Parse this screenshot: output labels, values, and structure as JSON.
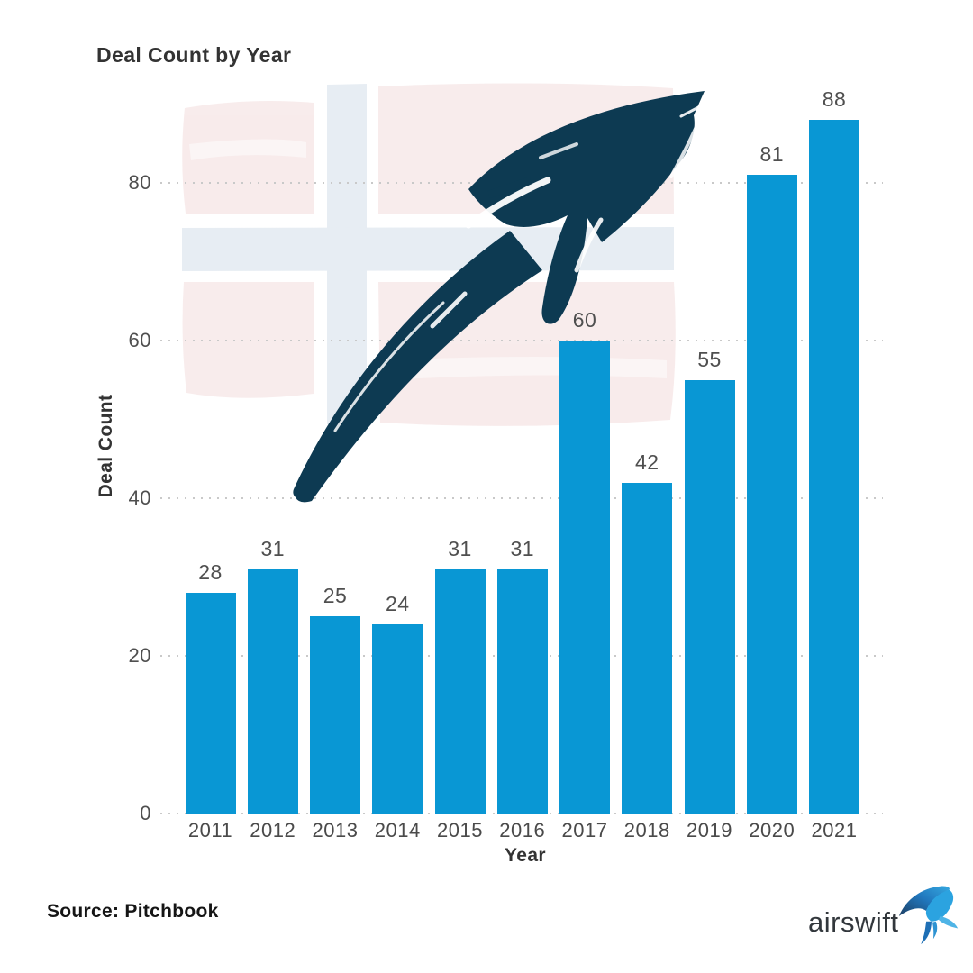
{
  "chart_data": {
    "type": "bar",
    "title": "Deal Count by Year",
    "categories": [
      "2011",
      "2012",
      "2013",
      "2014",
      "2015",
      "2016",
      "2017",
      "2018",
      "2019",
      "2020",
      "2021"
    ],
    "values": [
      28,
      31,
      25,
      24,
      31,
      31,
      60,
      42,
      55,
      81,
      88
    ],
    "xlabel": "Year",
    "ylabel": "Deal Count",
    "ylim": [
      0,
      92
    ],
    "yticks": [
      0,
      20,
      40,
      60,
      80
    ],
    "grid": "horizontal-dotted",
    "legend": "none",
    "bar_color": "#0997d4"
  },
  "graphics": {
    "arrow_icon": "brush-growth-arrow",
    "watermark_icon": "norway-flag",
    "logo_icon": "swallow-bird"
  },
  "colors": {
    "bar": "#0997d4",
    "arrow": "#0d3a52",
    "flag_red": "#f3dcdc",
    "flag_blue": "#dfe7ef",
    "grid": "#c9c9c9",
    "text_dark": "#333333",
    "text_gray": "#4f4f4f"
  },
  "footer": {
    "source_label": "Source: Pitchbook"
  },
  "logo": {
    "text": "airswift"
  }
}
